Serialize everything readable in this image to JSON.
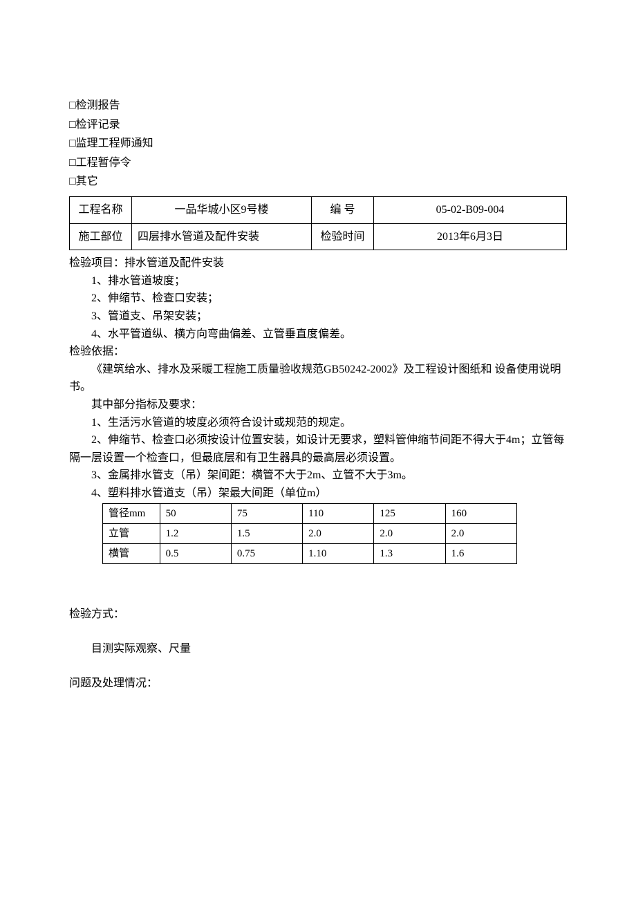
{
  "checkboxes": {
    "item1": "□检测报告",
    "item2": "□检评记录",
    "item3": "□监理工程师通知",
    "item4": "□工程暂停令",
    "item5": "□其它"
  },
  "headerTable": {
    "row1": {
      "label1": "工程名称",
      "value1": "一品华城小区9号楼",
      "label2": "编  号",
      "value2": "05-02-B09-004"
    },
    "row2": {
      "label1": "施工部位",
      "value1": "四层排水管道及配件安装",
      "label2": "检验时间",
      "value2": "2013年6月3日"
    }
  },
  "inspectionItems": {
    "heading": "检验项目：排水管道及配件安装",
    "item1": "1、排水管道坡度；",
    "item2": "2、伸缩节、检查口安装；",
    "item3": "3、管道支、吊架安装；",
    "item4": "4、水平管道纵、横方向弯曲偏差、立管垂直度偏差。"
  },
  "inspectionBasis": {
    "heading": "检验依据：",
    "para1": "《建筑给水、排水及采暖工程施工质量验收规范GB50242-2002》及工程设计图纸和  设备使用说明书。",
    "subheading": "其中部分指标及要求：",
    "item1": "1、生活污水管道的坡度必须符合设计或规范的规定。",
    "item2": "2、伸缩节、检查口必须按设计位置安装，如设计无要求，塑料管伸缩节间距不得大于4m；立管每隔一层设置一个检查口，但最底层和有卫生器具的最高层必须设置。",
    "item3": "3、金属排水管支（吊）架间距：横管不大于2m、立管不大于3m。",
    "item4": "4、塑料排水管道支（吊）架最大间距（单位m）"
  },
  "dataTable": {
    "headers": [
      "管径mm",
      "50",
      "75",
      "110",
      "125",
      "160"
    ],
    "rows": [
      [
        "立管",
        "1.2",
        "1.5",
        "2.0",
        "2.0",
        "2.0"
      ],
      [
        "横管",
        "0.5",
        "0.75",
        "1.10",
        "1.3",
        "1.6"
      ]
    ]
  },
  "inspectionMethod": {
    "heading": "检验方式：",
    "content": "目测实际观察、尺量"
  },
  "issues": {
    "heading": "问题及处理情况："
  }
}
